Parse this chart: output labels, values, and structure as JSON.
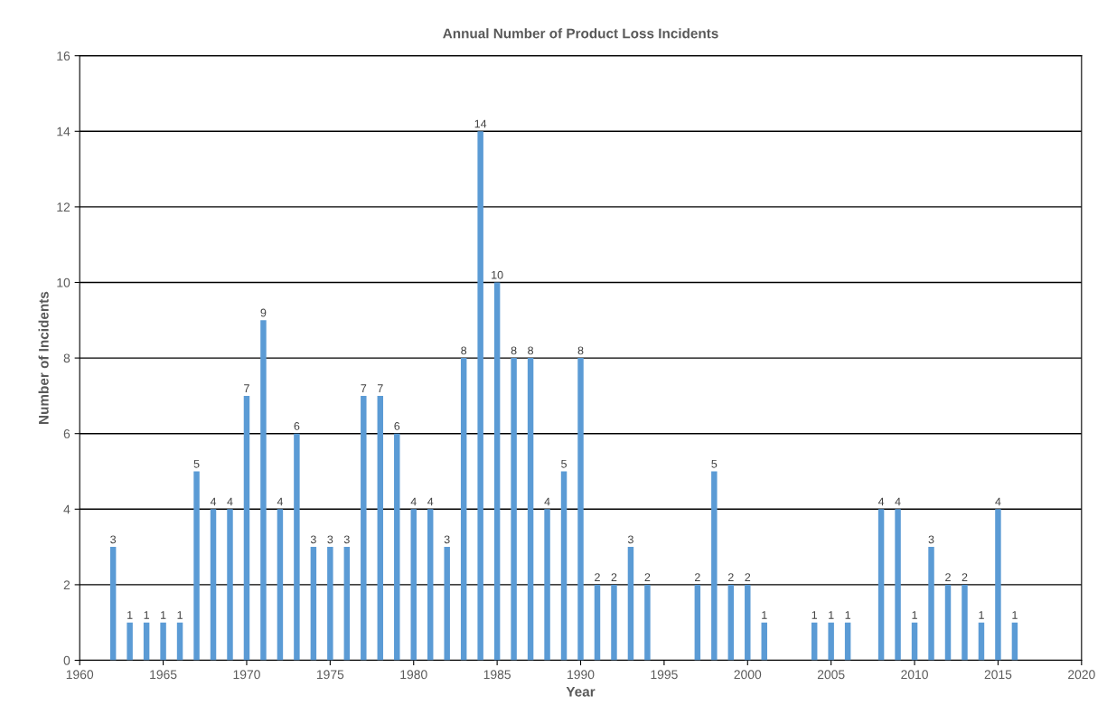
{
  "chart_data": {
    "type": "bar",
    "title": "Annual Number of Product Loss Incidents",
    "xlabel": "Year",
    "ylabel": "Number of Incidents",
    "x": [
      1962,
      1963,
      1964,
      1965,
      1966,
      1967,
      1968,
      1969,
      1970,
      1971,
      1972,
      1973,
      1974,
      1975,
      1976,
      1977,
      1978,
      1979,
      1980,
      1981,
      1982,
      1983,
      1984,
      1985,
      1986,
      1987,
      1988,
      1989,
      1990,
      1991,
      1992,
      1993,
      1994,
      1997,
      1998,
      1999,
      2000,
      2001,
      2004,
      2005,
      2006,
      2008,
      2009,
      2010,
      2011,
      2012,
      2013,
      2014,
      2015,
      2016
    ],
    "values": [
      3,
      1,
      1,
      1,
      1,
      5,
      4,
      4,
      7,
      9,
      4,
      6,
      3,
      3,
      3,
      7,
      7,
      6,
      4,
      4,
      3,
      8,
      14,
      10,
      8,
      8,
      4,
      5,
      8,
      2,
      2,
      3,
      2,
      2,
      5,
      2,
      2,
      1,
      1,
      1,
      1,
      4,
      4,
      1,
      3,
      2,
      2,
      1,
      4,
      1
    ],
    "color": "#5b9bd5",
    "data_labels": true,
    "grid": "y",
    "legend": false,
    "xlim": [
      1960,
      2020
    ],
    "xticks": [
      1960,
      1965,
      1970,
      1975,
      1980,
      1985,
      1990,
      1995,
      2000,
      2005,
      2010,
      2015,
      2020
    ],
    "ylim": [
      0,
      16
    ],
    "yticks": [
      0,
      2,
      4,
      6,
      8,
      10,
      12,
      14,
      16
    ]
  }
}
